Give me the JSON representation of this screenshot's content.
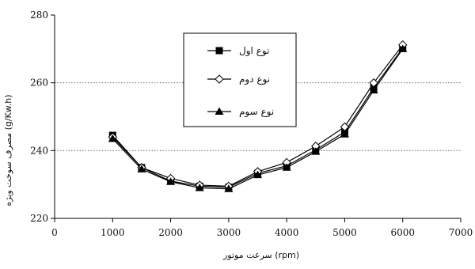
{
  "chart_data": {
    "type": "line",
    "title": "",
    "xlabel": "سرعت موتور (rpm)",
    "ylabel": "مصرف سوخت ویژه (g/Kw.h)",
    "xlim": [
      0,
      7000
    ],
    "ylim": [
      220,
      280
    ],
    "xticks": [
      0,
      1000,
      2000,
      3000,
      4000,
      5000,
      6000,
      7000
    ],
    "yticks": [
      220,
      240,
      260,
      280
    ],
    "grid": "horizontal dotted",
    "legend_position": "top-center",
    "x": [
      1000,
      1500,
      2000,
      2500,
      3000,
      3500,
      4000,
      4500,
      5000,
      5500,
      6000
    ],
    "series": [
      {
        "name": "نوع اول",
        "marker": "square",
        "values": [
          244.5,
          235,
          231,
          229.5,
          229.2,
          233.3,
          235.5,
          240.2,
          245.5,
          258.5,
          270.3
        ]
      },
      {
        "name": "نوع دوم",
        "marker": "diamond",
        "values": [
          244,
          235,
          231.8,
          229.8,
          229.5,
          233.8,
          236.5,
          241.3,
          247,
          260,
          271.2
        ]
      },
      {
        "name": "نوع سوم",
        "marker": "triangle",
        "values": [
          243.5,
          234.5,
          230.8,
          229,
          228.7,
          232.8,
          235,
          239.7,
          244.8,
          257.8,
          270
        ]
      }
    ]
  }
}
